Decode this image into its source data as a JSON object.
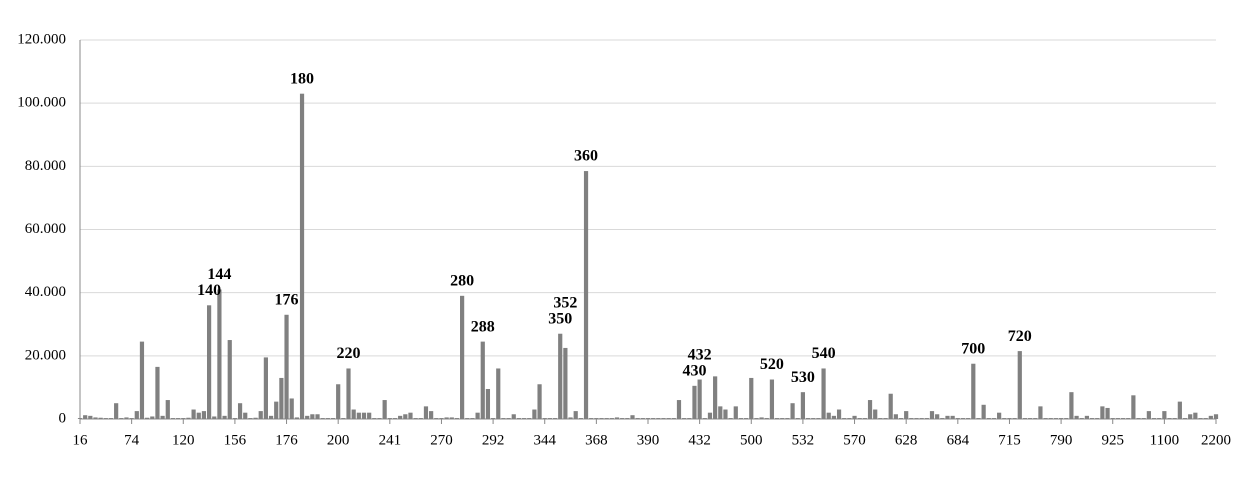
{
  "chart_data": {
    "type": "bar",
    "categories": [
      "16",
      null,
      null,
      null,
      null,
      null,
      null,
      null,
      null,
      null,
      "74",
      null,
      null,
      null,
      null,
      null,
      null,
      null,
      null,
      null,
      "120",
      null,
      null,
      null,
      null,
      null,
      null,
      null,
      null,
      null,
      "156",
      null,
      null,
      null,
      null,
      null,
      null,
      null,
      null,
      null,
      "176",
      null,
      null,
      null,
      null,
      null,
      null,
      null,
      null,
      null,
      "200",
      null,
      null,
      null,
      null,
      null,
      null,
      null,
      null,
      null,
      "241",
      null,
      null,
      null,
      null,
      null,
      null,
      null,
      null,
      null,
      "270",
      null,
      null,
      null,
      null,
      null,
      null,
      null,
      null,
      null,
      "292",
      null,
      null,
      null,
      null,
      null,
      null,
      null,
      null,
      null,
      "344",
      null,
      null,
      null,
      null,
      null,
      null,
      null,
      null,
      null,
      "368",
      null,
      null,
      null,
      null,
      null,
      null,
      null,
      null,
      null,
      "390",
      null,
      null,
      null,
      null,
      null,
      null,
      null,
      null,
      null,
      "432",
      null,
      null,
      null,
      null,
      null,
      null,
      null,
      null,
      null,
      "500",
      null,
      null,
      null,
      null,
      null,
      null,
      null,
      null,
      null,
      "532",
      null,
      null,
      null,
      null,
      null,
      null,
      null,
      null,
      null,
      "570",
      null,
      null,
      null,
      null,
      null,
      null,
      null,
      null,
      null,
      "628",
      null,
      null,
      null,
      null,
      null,
      null,
      null,
      null,
      null,
      "684",
      null,
      null,
      null,
      null,
      null,
      null,
      null,
      null,
      null,
      "715",
      null,
      null,
      null,
      null,
      null,
      null,
      null,
      null,
      null,
      "790",
      null,
      null,
      null,
      null,
      null,
      null,
      null,
      null,
      null,
      "925",
      null,
      null,
      null,
      null,
      null,
      null,
      null,
      null,
      null,
      "1100",
      null,
      null,
      null,
      null,
      null,
      null,
      null,
      null,
      null,
      "2200"
    ],
    "values": [
      300,
      1200,
      1000,
      500,
      400,
      300,
      300,
      5000,
      300,
      500,
      300,
      2500,
      24500,
      400,
      800,
      16500,
      1000,
      6000,
      300,
      300,
      300,
      400,
      3000,
      2000,
      2500,
      36000,
      800,
      41000,
      1000,
      25000,
      300,
      5000,
      2000,
      300,
      400,
      2500,
      19500,
      1000,
      5500,
      13000,
      33000,
      6500,
      500,
      103000,
      1000,
      1500,
      1500,
      300,
      300,
      300,
      11000,
      300,
      16000,
      3000,
      2000,
      2000,
      2000,
      300,
      300,
      6000,
      300,
      300,
      1000,
      1500,
      2000,
      300,
      300,
      4000,
      2500,
      300,
      300,
      500,
      500,
      300,
      39000,
      300,
      300,
      2000,
      24500,
      9500,
      300,
      16000,
      300,
      300,
      1500,
      300,
      300,
      300,
      3000,
      11000,
      300,
      300,
      300,
      27000,
      22500,
      500,
      2500,
      300,
      78500,
      300,
      300,
      300,
      300,
      300,
      500,
      300,
      300,
      1200,
      300,
      300,
      300,
      300,
      300,
      300,
      300,
      300,
      6000,
      300,
      300,
      10500,
      12500,
      300,
      2000,
      13500,
      4000,
      3000,
      300,
      4000,
      300,
      300,
      13000,
      300,
      500,
      300,
      12500,
      300,
      300,
      300,
      5000,
      300,
      8500,
      300,
      300,
      300,
      16000,
      2000,
      1000,
      3000,
      300,
      300,
      1000,
      300,
      300,
      6000,
      3000,
      300,
      300,
      8000,
      1500,
      300,
      2500,
      300,
      300,
      300,
      300,
      2500,
      1500,
      300,
      1000,
      1000,
      300,
      300,
      300,
      17500,
      300,
      4500,
      300,
      300,
      2000,
      300,
      300,
      300,
      21500,
      300,
      300,
      300,
      4000,
      300,
      300,
      300,
      300,
      300,
      8500,
      1000,
      300,
      1000,
      300,
      300,
      4000,
      3500,
      300,
      300,
      300,
      300,
      7500,
      300,
      300,
      2500,
      300,
      300,
      2500,
      300,
      300,
      5500,
      300,
      1500,
      2000,
      300,
      300,
      1000,
      1500
    ],
    "annotations": [
      {
        "text": "140",
        "bar": 25
      },
      {
        "text": "144",
        "bar": 27
      },
      {
        "text": "176",
        "bar": 40
      },
      {
        "text": "180",
        "bar": 43
      },
      {
        "text": "220",
        "bar": 52
      },
      {
        "text": "280",
        "bar": 74
      },
      {
        "text": "288",
        "bar": 78
      },
      {
        "text": "350",
        "bar": 93
      },
      {
        "text": "352",
        "bar": 94
      },
      {
        "text": "360",
        "bar": 98
      },
      {
        "text": "430",
        "bar": 119
      },
      {
        "text": "432",
        "bar": 120
      },
      {
        "text": "520",
        "bar": 134
      },
      {
        "text": "530",
        "bar": 140
      },
      {
        "text": "540",
        "bar": 144
      },
      {
        "text": "700",
        "bar": 173
      },
      {
        "text": "720",
        "bar": 182
      }
    ],
    "color": "#808080",
    "ylim": [
      0,
      120000
    ],
    "yticks": [
      0,
      {
        "value": 20000,
        "label": "20.000"
      },
      {
        "value": 40000,
        "label": "40.000"
      },
      {
        "value": 60000,
        "label": "60.000"
      },
      {
        "value": 80000,
        "label": "80.000"
      },
      {
        "value": 100000,
        "label": "100.000"
      },
      {
        "value": 120000,
        "label": "120.000"
      }
    ],
    "grid": true
  }
}
